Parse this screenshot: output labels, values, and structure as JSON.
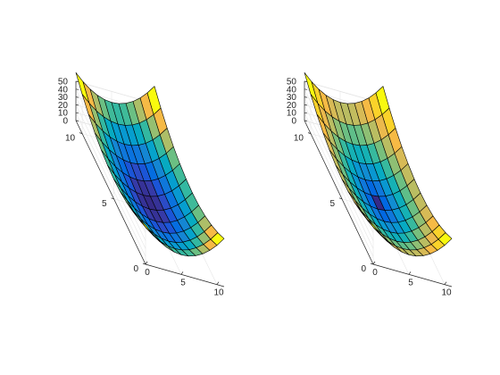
{
  "chart_data": [
    {
      "type": "surface",
      "title": "",
      "xlabel": "",
      "ylabel": "",
      "zlabel": "",
      "x": [
        0,
        1,
        2,
        3,
        4,
        5,
        6,
        7,
        8,
        9,
        10,
        11
      ],
      "y": [
        0,
        1,
        2,
        3,
        4,
        5,
        6,
        7,
        8,
        9,
        10,
        11
      ],
      "z_function": "(x-5)^2 + (y-5)^2",
      "x_ticks": [
        "0",
        "5",
        "10"
      ],
      "y_ticks": [
        "0",
        "5",
        "10"
      ],
      "z_ticks": [
        "0",
        "10",
        "20",
        "30",
        "40",
        "50"
      ],
      "xlim": [
        0,
        11
      ],
      "ylim": [
        0,
        11
      ],
      "zlim": [
        0,
        50
      ],
      "colormap": "parula",
      "color_source": "z",
      "grid": true
    },
    {
      "type": "surface",
      "title": "",
      "xlabel": "",
      "ylabel": "",
      "zlabel": "",
      "x": [
        0,
        1,
        2,
        3,
        4,
        5,
        6,
        7,
        8,
        9,
        10,
        11
      ],
      "y": [
        0,
        1,
        2,
        3,
        4,
        5,
        6,
        7,
        8,
        9,
        10,
        11
      ],
      "z_function": "(x-5)^2 + (y-5)^2",
      "x_ticks": [
        "0",
        "5",
        "10"
      ],
      "y_ticks": [
        "0",
        "5",
        "10"
      ],
      "z_ticks": [
        "0",
        "10",
        "20",
        "30",
        "40",
        "50"
      ],
      "xlim": [
        0,
        11
      ],
      "ylim": [
        0,
        11
      ],
      "zlim": [
        0,
        50
      ],
      "colormap": "parula",
      "color_source": "gradient magnitude",
      "grid": true
    }
  ]
}
